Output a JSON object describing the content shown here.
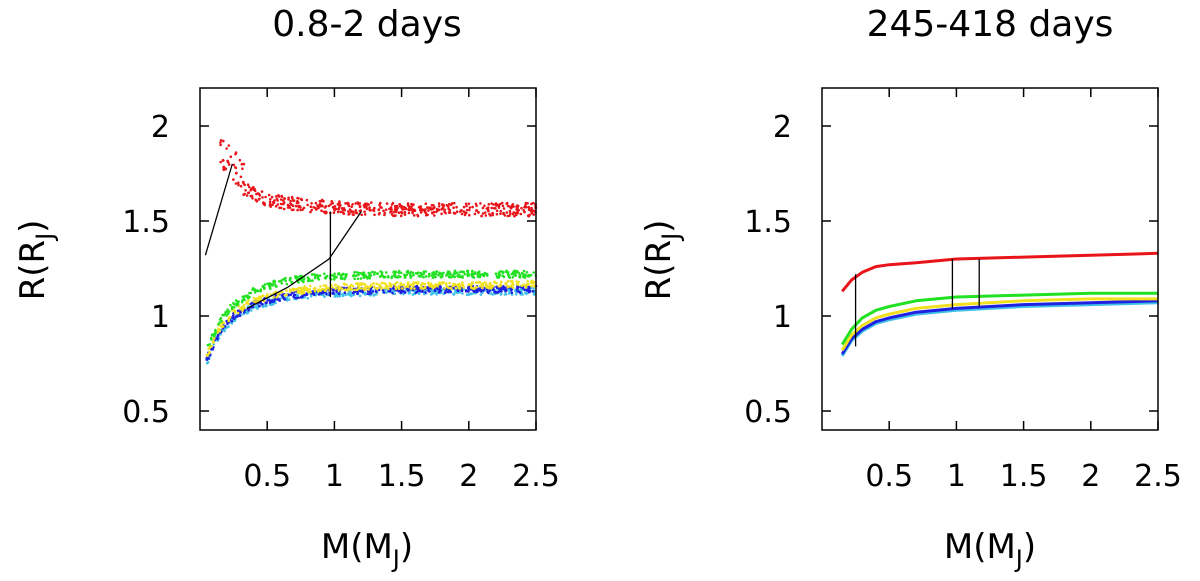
{
  "chart_data": [
    {
      "type": "scatter",
      "title": "0.8-2 days",
      "xlabel": "M(M",
      "xlabel_sub": "J",
      "xlabel_end": ")",
      "ylabel": "R(R",
      "ylabel_sub": "J",
      "ylabel_end": ")",
      "xlim": [
        0,
        2.5
      ],
      "ylim": [
        0.4,
        2.2
      ],
      "xticks": [
        0.5,
        1,
        1.5,
        2,
        2.5
      ],
      "xtick_labels": [
        "0.5",
        "1",
        "1.5",
        "2",
        "2.5"
      ],
      "yticks": [
        0.5,
        1,
        1.5,
        2
      ],
      "ytick_labels": [
        "0.5",
        "1",
        "1.5",
        "2"
      ],
      "series": [
        {
          "name": "red",
          "color": "#e8141a",
          "x": [
            0.15,
            0.25,
            0.35,
            0.5,
            0.7,
            1.0,
            1.5,
            2.0,
            2.5
          ],
          "y": [
            1.85,
            1.75,
            1.66,
            1.61,
            1.59,
            1.57,
            1.56,
            1.56,
            1.56
          ]
        },
        {
          "name": "green",
          "color": "#22e022",
          "x": [
            0.05,
            0.15,
            0.25,
            0.4,
            0.6,
            0.8,
            1.0,
            1.5,
            2.0,
            2.5
          ],
          "y": [
            0.82,
            0.98,
            1.06,
            1.13,
            1.18,
            1.2,
            1.21,
            1.22,
            1.22,
            1.22
          ]
        },
        {
          "name": "yellow",
          "color": "#f0e020",
          "x": [
            0.05,
            0.15,
            0.25,
            0.4,
            0.6,
            0.8,
            1.0,
            1.5,
            2.0,
            2.5
          ],
          "y": [
            0.79,
            0.94,
            1.02,
            1.08,
            1.12,
            1.14,
            1.15,
            1.16,
            1.16,
            1.17
          ]
        },
        {
          "name": "blue",
          "color": "#2020e0",
          "x": [
            0.05,
            0.15,
            0.25,
            0.4,
            0.6,
            0.8,
            1.0,
            1.5,
            2.0,
            2.5
          ],
          "y": [
            0.77,
            0.92,
            1.0,
            1.06,
            1.1,
            1.12,
            1.13,
            1.14,
            1.14,
            1.14
          ]
        },
        {
          "name": "cyan",
          "color": "#40c0e8",
          "x": [
            0.05,
            0.15,
            0.25,
            0.4,
            0.6,
            0.8,
            1.0,
            1.5,
            2.0,
            2.5
          ],
          "y": [
            0.76,
            0.91,
            0.99,
            1.05,
            1.09,
            1.11,
            1.12,
            1.13,
            1.13,
            1.13
          ]
        }
      ],
      "lines": [
        {
          "x": [
            0.04,
            0.24
          ],
          "y": [
            1.32,
            1.8
          ]
        },
        {
          "x": [
            0.35,
            0.65,
            0.96,
            1.2
          ],
          "y": [
            1.04,
            1.15,
            1.3,
            1.55
          ]
        },
        {
          "x": [
            0.97,
            0.97
          ],
          "y": [
            1.1,
            1.55
          ]
        }
      ]
    },
    {
      "type": "line",
      "title": "245-418 days",
      "xlabel": "M(M",
      "xlabel_sub": "J",
      "xlabel_end": ")",
      "ylabel": "R(R",
      "ylabel_sub": "J",
      "ylabel_end": ")",
      "xlim": [
        0,
        2.5
      ],
      "ylim": [
        0.4,
        2.2
      ],
      "xticks": [
        0.5,
        1,
        1.5,
        2,
        2.5
      ],
      "xtick_labels": [
        "0.5",
        "1",
        "1.5",
        "2",
        "2.5"
      ],
      "yticks": [
        0.5,
        1,
        1.5,
        2
      ],
      "ytick_labels": [
        "0.5",
        "1",
        "1.5",
        "2"
      ],
      "series": [
        {
          "name": "red",
          "color": "#e8141a",
          "x": [
            0.15,
            0.22,
            0.3,
            0.4,
            0.5,
            0.7,
            1.0,
            1.5,
            2.0,
            2.5
          ],
          "y": [
            1.13,
            1.19,
            1.23,
            1.26,
            1.27,
            1.28,
            1.3,
            1.31,
            1.32,
            1.33
          ]
        },
        {
          "name": "green",
          "color": "#22e022",
          "x": [
            0.15,
            0.22,
            0.3,
            0.4,
            0.5,
            0.7,
            1.0,
            1.5,
            2.0,
            2.5
          ],
          "y": [
            0.85,
            0.93,
            0.99,
            1.03,
            1.05,
            1.08,
            1.1,
            1.11,
            1.12,
            1.12
          ]
        },
        {
          "name": "yellow",
          "color": "#f0e020",
          "x": [
            0.15,
            0.22,
            0.3,
            0.4,
            0.5,
            0.7,
            1.0,
            1.5,
            2.0,
            2.5
          ],
          "y": [
            0.82,
            0.9,
            0.95,
            0.99,
            1.01,
            1.04,
            1.06,
            1.08,
            1.09,
            1.09
          ]
        },
        {
          "name": "blue",
          "color": "#2020e0",
          "x": [
            0.15,
            0.22,
            0.3,
            0.4,
            0.5,
            0.7,
            1.0,
            1.5,
            2.0,
            2.5
          ],
          "y": [
            0.8,
            0.88,
            0.93,
            0.97,
            0.99,
            1.02,
            1.04,
            1.06,
            1.07,
            1.08
          ]
        },
        {
          "name": "cyan",
          "color": "#40c0e8",
          "x": [
            0.15,
            0.22,
            0.3,
            0.4,
            0.5,
            0.7,
            1.0,
            1.5,
            2.0,
            2.5
          ],
          "y": [
            0.79,
            0.87,
            0.92,
            0.96,
            0.98,
            1.01,
            1.03,
            1.05,
            1.06,
            1.07
          ]
        }
      ],
      "lines": [
        {
          "x": [
            0.25,
            0.25
          ],
          "y": [
            0.84,
            1.22
          ]
        },
        {
          "x": [
            0.97,
            0.97
          ],
          "y": [
            1.04,
            1.3
          ]
        },
        {
          "x": [
            1.17,
            1.17
          ],
          "y": [
            1.05,
            1.3
          ]
        }
      ]
    }
  ]
}
